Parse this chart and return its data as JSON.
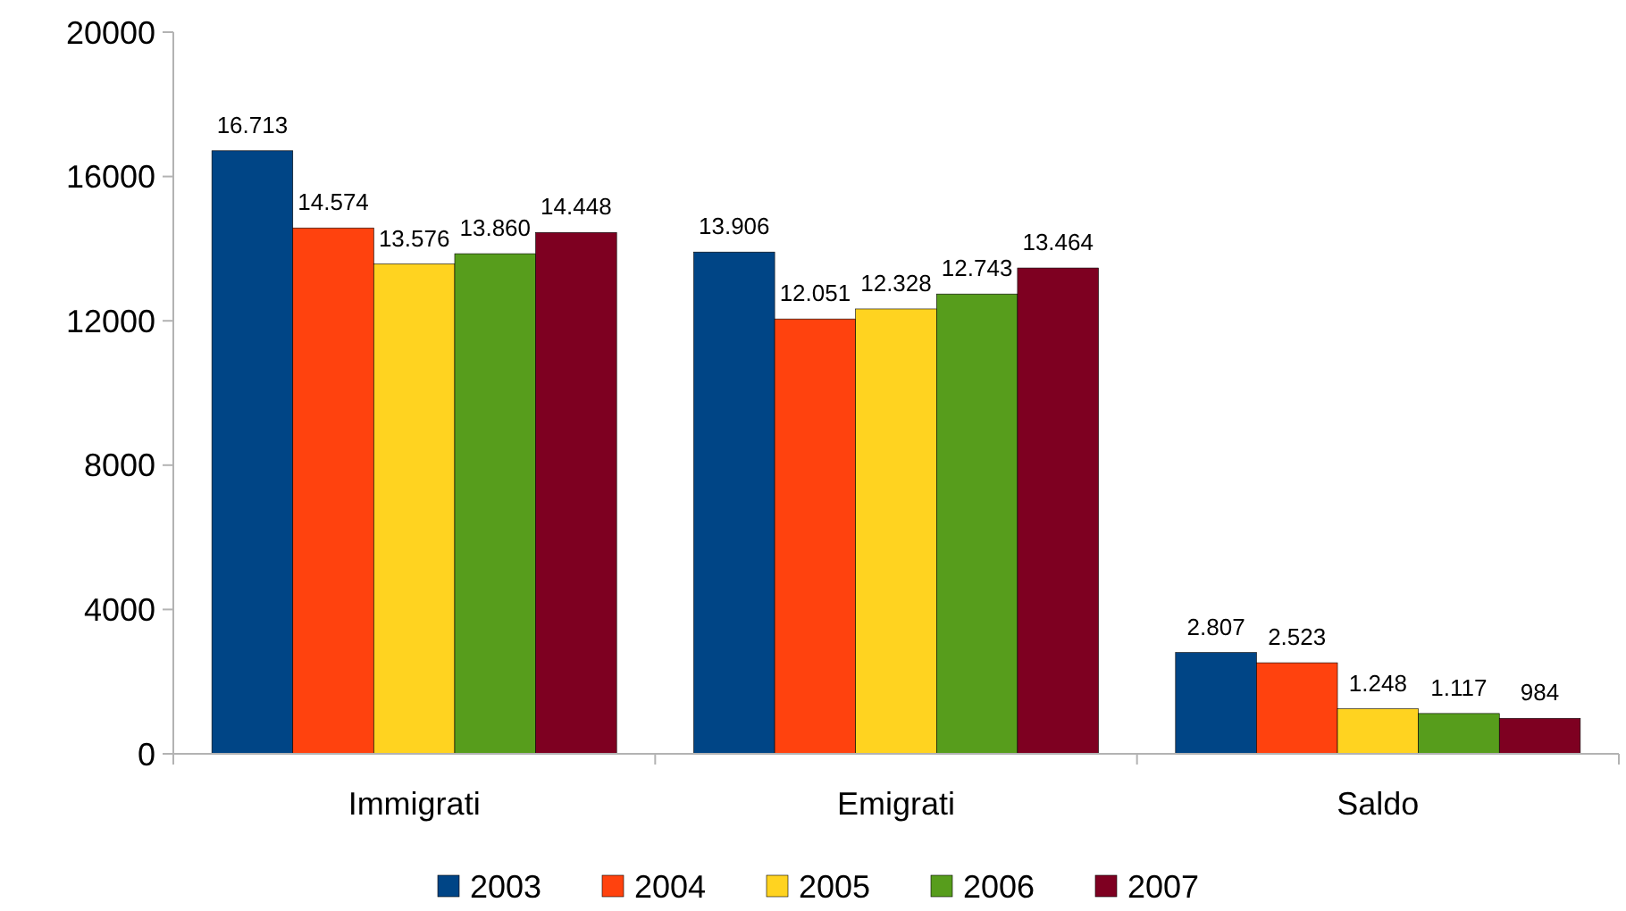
{
  "chart_data": {
    "type": "bar",
    "categories": [
      "Immigrati",
      "Emigrati",
      "Saldo"
    ],
    "series": [
      {
        "name": "2003",
        "color": "#004586",
        "values": [
          16713,
          13906,
          2807
        ],
        "value_labels": [
          "16.713",
          "13.906",
          "2.807"
        ]
      },
      {
        "name": "2004",
        "color": "#ff420e",
        "values": [
          14574,
          12051,
          2523
        ],
        "value_labels": [
          "14.574",
          "12.051",
          "2.523"
        ]
      },
      {
        "name": "2005",
        "color": "#ffd320",
        "values": [
          13576,
          12328,
          1248
        ],
        "value_labels": [
          "13.576",
          "12.328",
          "1.248"
        ]
      },
      {
        "name": "2006",
        "color": "#579d1c",
        "values": [
          13860,
          12743,
          1117
        ],
        "value_labels": [
          "13.860",
          "12.743",
          "1.117"
        ]
      },
      {
        "name": "2007",
        "color": "#7e0021",
        "values": [
          14448,
          13464,
          984
        ],
        "value_labels": [
          "14.448",
          "13.464",
          "984"
        ]
      }
    ],
    "ylim": [
      0,
      20000
    ],
    "yticks": [
      0,
      4000,
      8000,
      12000,
      16000,
      20000
    ],
    "grid": false,
    "legend": "bottom"
  }
}
